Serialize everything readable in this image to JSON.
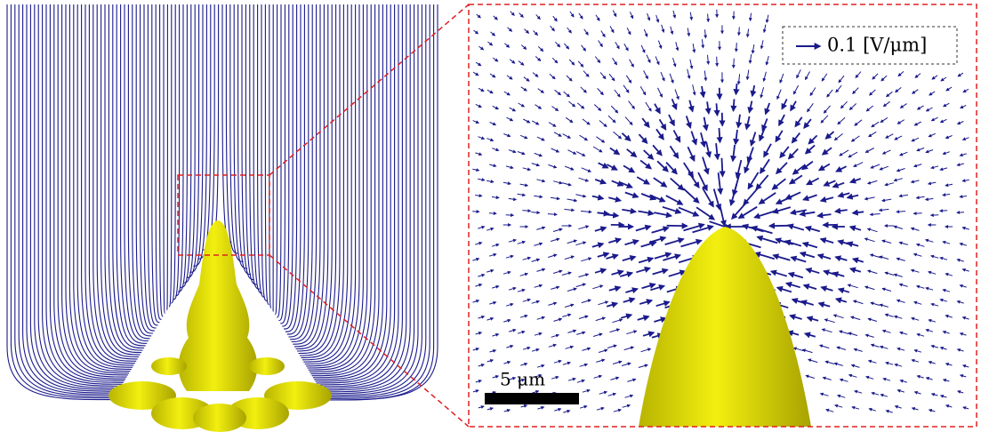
{
  "legend": {
    "label": "0.1 [V/μm]"
  },
  "scale_bar": {
    "label": "5 μm"
  }
}
